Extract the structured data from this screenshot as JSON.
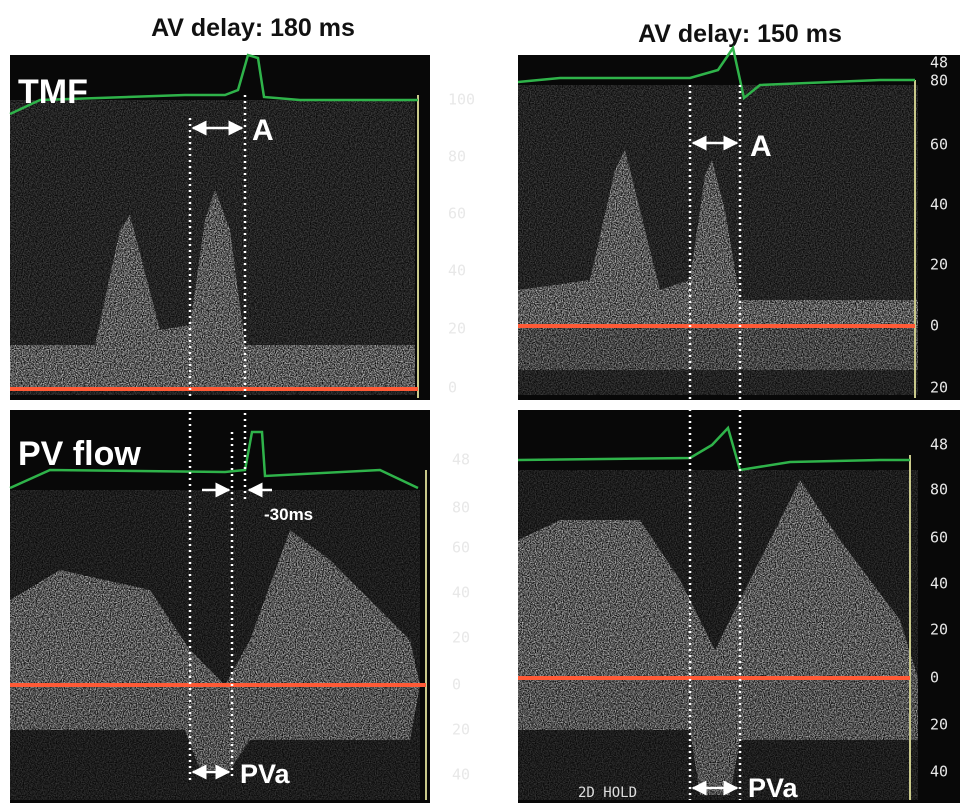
{
  "headings": [
    "AV delay: 180 ms",
    "AV delay: 150 ms"
  ],
  "panels": [
    {
      "label": "TMF",
      "annotation": "A",
      "scale": [
        "100",
        "80",
        "60",
        "40",
        "20",
        "0"
      ]
    },
    {
      "annotation": "A",
      "scale": [
        "48",
        "80",
        "60",
        "40",
        "20",
        "0",
        "20"
      ]
    },
    {
      "label": "PV flow",
      "interval": "-30ms",
      "annotation": "PVa",
      "scale": [
        "48",
        "80",
        "60",
        "40",
        "20",
        "0",
        "20",
        "40"
      ]
    },
    {
      "annotation": "PVa",
      "footer": "2D HOLD",
      "scale": [
        "48",
        "80",
        "60",
        "40",
        "20",
        "0",
        "20",
        "40"
      ]
    }
  ]
}
